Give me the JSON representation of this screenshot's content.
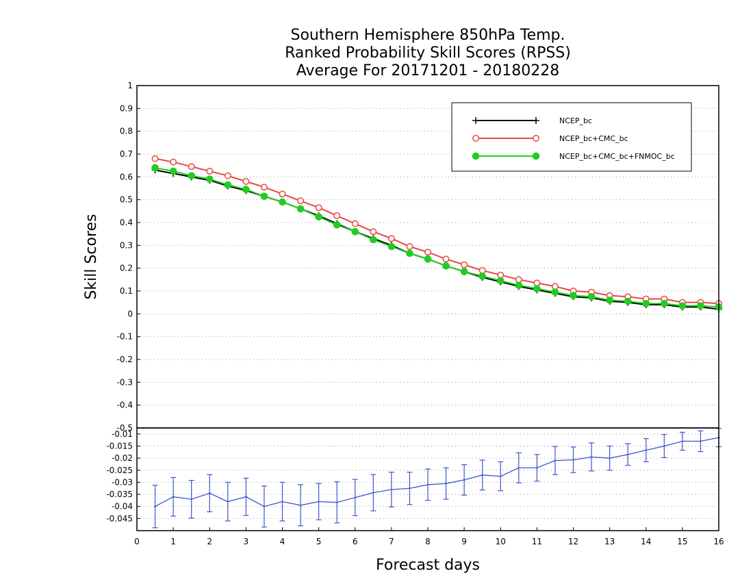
{
  "chart_data": [
    {
      "type": "line",
      "title_lines": [
        "Southern Hemisphere 850hPa Temp.",
        "Ranked Probability Skill Scores (RPSS)",
        "Average For 20171201 - 20180228"
      ],
      "ylabel": "Skill Scores",
      "xlabel": "",
      "ylim": [
        -0.5,
        1
      ],
      "yticks": [
        "1",
        "0.9",
        "0.8",
        "0.7",
        "0.6",
        "0.5",
        "0.4",
        "0.3",
        "0.2",
        "0.1",
        "0",
        "-0.1",
        "-0.2",
        "-0.3",
        "-0.4",
        "-0.5"
      ],
      "grid": "horizontal-dotted",
      "legend_position": "top-right",
      "x": [
        0.5,
        1.0,
        1.5,
        2.0,
        2.5,
        3.0,
        3.5,
        4.0,
        4.5,
        5.0,
        5.5,
        6.0,
        6.5,
        7.0,
        7.5,
        8.0,
        8.5,
        9.0,
        9.5,
        10.0,
        10.5,
        11.0,
        11.5,
        12.0,
        12.5,
        13.0,
        13.5,
        14.0,
        14.5,
        15.0,
        15.5,
        16.0
      ],
      "series": [
        {
          "name": "NCEP_bc",
          "color": "#000000",
          "marker": "plus",
          "values": [
            0.63,
            0.615,
            0.6,
            0.585,
            0.56,
            0.54,
            0.515,
            0.49,
            0.46,
            0.43,
            0.395,
            0.36,
            0.33,
            0.3,
            0.265,
            0.24,
            0.21,
            0.185,
            0.16,
            0.14,
            0.12,
            0.105,
            0.09,
            0.075,
            0.07,
            0.055,
            0.05,
            0.04,
            0.04,
            0.03,
            0.03,
            0.02
          ]
        },
        {
          "name": "NCEP_bc+CMC_bc",
          "color": "#e8473f",
          "marker": "open-circle",
          "values": [
            0.68,
            0.665,
            0.645,
            0.625,
            0.605,
            0.58,
            0.555,
            0.525,
            0.495,
            0.465,
            0.43,
            0.395,
            0.36,
            0.33,
            0.295,
            0.27,
            0.24,
            0.215,
            0.19,
            0.17,
            0.15,
            0.135,
            0.12,
            0.1,
            0.095,
            0.08,
            0.075,
            0.065,
            0.065,
            0.05,
            0.05,
            0.045
          ]
        },
        {
          "name": "NCEP_bc+CMC_bc+FNMOC_bc",
          "color": "#22cc22",
          "marker": "filled-circle",
          "values": [
            0.64,
            0.625,
            0.605,
            0.59,
            0.565,
            0.545,
            0.515,
            0.49,
            0.46,
            0.425,
            0.39,
            0.36,
            0.325,
            0.295,
            0.265,
            0.24,
            0.21,
            0.185,
            0.165,
            0.145,
            0.125,
            0.11,
            0.095,
            0.08,
            0.075,
            0.06,
            0.055,
            0.045,
            0.045,
            0.035,
            0.035,
            0.03
          ]
        }
      ]
    },
    {
      "type": "line",
      "ylim": [
        -0.05,
        -0.0075
      ],
      "yticks": [
        "-0.01",
        "-0.015",
        "-0.02",
        "-0.025",
        "-0.03",
        "-0.035",
        "-0.04",
        "-0.045"
      ],
      "xlabel": "Forecast days",
      "xlim": [
        0,
        16
      ],
      "xticks": [
        "0",
        "1",
        "2",
        "3",
        "4",
        "5",
        "6",
        "7",
        "8",
        "9",
        "10",
        "11",
        "12",
        "13",
        "14",
        "15",
        "16"
      ],
      "grid": "horizontal-dotted",
      "x": [
        0.5,
        1.0,
        1.5,
        2.0,
        2.5,
        3.0,
        3.5,
        4.0,
        4.5,
        5.0,
        5.5,
        6.0,
        6.5,
        7.0,
        7.5,
        8.0,
        8.5,
        9.0,
        9.5,
        10.0,
        10.5,
        11.0,
        11.5,
        12.0,
        12.5,
        13.0,
        13.5,
        14.0,
        14.5,
        15.0,
        15.5,
        16.0
      ],
      "series": [
        {
          "color": "#3a55cc",
          "error_bars": true,
          "values": [
            -0.04,
            -0.036,
            -0.037,
            -0.0345,
            -0.038,
            -0.036,
            -0.04,
            -0.038,
            -0.0395,
            -0.038,
            -0.0383,
            -0.0363,
            -0.0343,
            -0.033,
            -0.0325,
            -0.031,
            -0.0305,
            -0.029,
            -0.027,
            -0.0275,
            -0.024,
            -0.024,
            -0.021,
            -0.0207,
            -0.0195,
            -0.02,
            -0.0185,
            -0.0167,
            -0.015,
            -0.013,
            -0.013,
            -0.0115
          ],
          "errors": [
            0.0088,
            0.008,
            0.0078,
            0.0077,
            0.008,
            0.0077,
            0.0085,
            0.008,
            0.0085,
            0.0075,
            0.0085,
            0.0075,
            0.0075,
            0.0072,
            0.0067,
            0.0065,
            0.0065,
            0.0063,
            0.0062,
            0.006,
            0.0062,
            0.0055,
            0.0058,
            0.0053,
            0.0058,
            0.005,
            0.0045,
            0.0048,
            0.0048,
            0.0037,
            0.0043,
            0.0038
          ]
        }
      ]
    }
  ]
}
